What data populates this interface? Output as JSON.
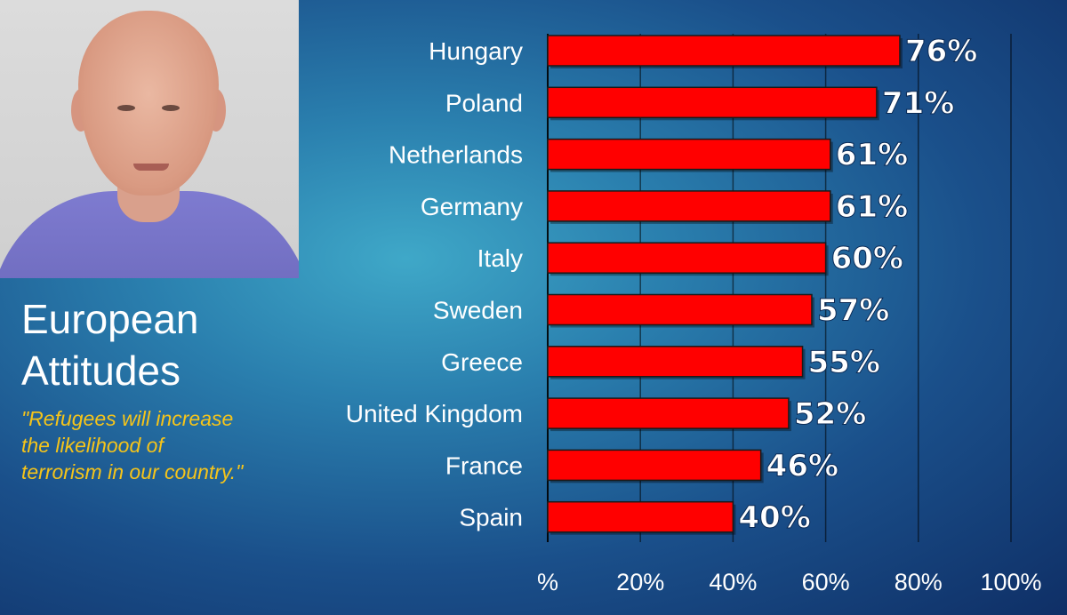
{
  "slide": {
    "title_line1": "European",
    "title_line2": "Attitudes",
    "quote_line1": "\"Refugees will increase",
    "quote_line2": "the likelihood of",
    "quote_line3": "terrorism in our country.\""
  },
  "colors": {
    "bar": "#ff0000",
    "bar_border": "#1a1a1a",
    "quote": "#f5c41a",
    "text": "#ffffff"
  },
  "chart_data": {
    "type": "bar",
    "orientation": "horizontal",
    "categories": [
      "Hungary",
      "Poland",
      "Netherlands",
      "Germany",
      "Italy",
      "Sweden",
      "Greece",
      "United Kingdom",
      "France",
      "Spain"
    ],
    "values": [
      76,
      71,
      61,
      61,
      60,
      57,
      55,
      52,
      46,
      40
    ],
    "value_labels": [
      "76%",
      "71%",
      "61%",
      "61%",
      "60%",
      "57%",
      "55%",
      "52%",
      "46%",
      "40%"
    ],
    "x_ticks": [
      0,
      20,
      40,
      60,
      80,
      100
    ],
    "x_tick_labels": [
      "%",
      "20%",
      "40%",
      "60%",
      "80%",
      "100%"
    ],
    "xlim": [
      0,
      100
    ],
    "grid": true
  }
}
